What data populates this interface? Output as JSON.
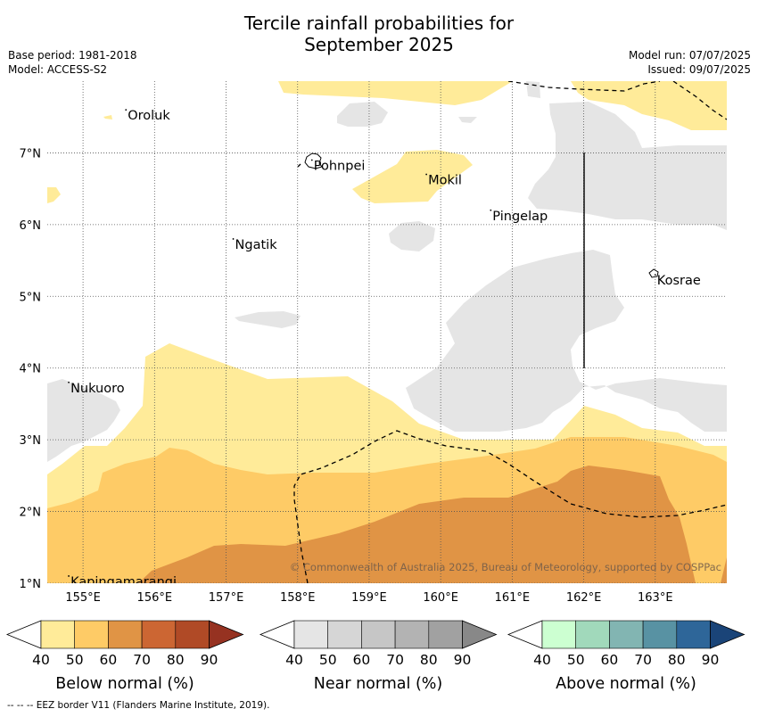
{
  "title": {
    "line1": "Tercile rainfall probabilities for",
    "line2": "September 2025"
  },
  "info": {
    "base_period": "Base period: 1981-2018",
    "model": "Model: ACCESS-S2",
    "model_run": "Model run: 07/07/2025",
    "issued": "Issued: 09/07/2025"
  },
  "map": {
    "lon_range": [
      154.5,
      164.0
    ],
    "lat_range": [
      1.0,
      8.0
    ],
    "lon_ticks": [
      "155°E",
      "156°E",
      "157°E",
      "158°E",
      "159°E",
      "160°E",
      "161°E",
      "162°E",
      "163°E"
    ],
    "lat_ticks": [
      "1°N",
      "2°N",
      "3°N",
      "4°N",
      "5°N",
      "6°N",
      "7°N"
    ],
    "places": [
      {
        "name": "Oroluk",
        "lon": 155.6,
        "lat": 7.6
      },
      {
        "name": "Pohnpei",
        "lon": 158.2,
        "lat": 6.9
      },
      {
        "name": "Mokil",
        "lon": 159.8,
        "lat": 6.7
      },
      {
        "name": "Pingelap",
        "lon": 160.7,
        "lat": 6.2
      },
      {
        "name": "Ngatik",
        "lon": 157.1,
        "lat": 5.8
      },
      {
        "name": "Kosrae",
        "lon": 163.0,
        "lat": 5.3
      },
      {
        "name": "Nukuoro",
        "lon": 154.8,
        "lat": 3.8
      },
      {
        "name": "Kapingamarangi",
        "lon": 154.8,
        "lat": 1.1
      }
    ],
    "copyright": "© Commonwealth of Australia 2025, Bureau of Meteorology, supported by COSPPac"
  },
  "colors": {
    "below": [
      "#ffeb99",
      "#fecb66",
      "#e09445",
      "#cc6633",
      "#b04a26",
      "#963221"
    ],
    "near": [
      "#e5e5e5",
      "#d6d6d6",
      "#c6c6c6",
      "#b3b3b3",
      "#a1a1a1",
      "#888888"
    ],
    "above": [
      "#ccffd1",
      "#a1d9bb",
      "#82b5b2",
      "#5892a3",
      "#2e6699",
      "#1a4478"
    ]
  },
  "legend": {
    "ticks": [
      "40",
      "50",
      "60",
      "70",
      "80",
      "90"
    ],
    "below_label": "Below normal (%)",
    "near_label": "Near normal (%)",
    "above_label": "Above normal (%)"
  },
  "footer": "--  --  -- EEZ border V11 (Flanders Marine Institute, 2019)."
}
